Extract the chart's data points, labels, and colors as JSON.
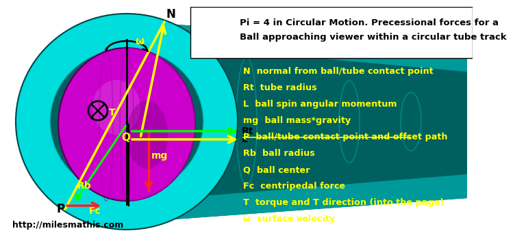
{
  "title_line1": "Pi = 4 in Circular Motion. Precessional forces for a",
  "title_line2": "Ball approaching viewer within a circular tube track",
  "bg_color": "#ffffff",
  "legend_items": [
    "N  normal from ball/tube contact point",
    "Rt  tube radius",
    "L  ball spin angular momentum",
    "mg  ball mass*gravity",
    "P  ball/tube contact point and offset path",
    "Rb  ball radius",
    "Q  ball center",
    "Fc  centripedal force",
    "T  torque and T direction (into the page)",
    "ω  surface velocity"
  ],
  "legend_strike": [
    false,
    false,
    false,
    false,
    true,
    false,
    false,
    false,
    false,
    false
  ],
  "legend_color": "#ffff00",
  "url_text": "http://milesmathis.com",
  "tube_outer": "#00dddd",
  "tube_mid": "#009999",
  "tube_dark": "#006060",
  "ball_color": "#cc00cc",
  "col_yellow": "#ffff00",
  "col_green": "#00ff00",
  "col_red": "#ff2222",
  "col_black": "#000000",
  "col_white": "#ffffff"
}
